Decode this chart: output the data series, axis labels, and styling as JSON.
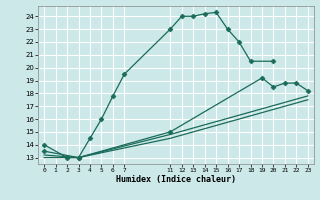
{
  "xlabel": "Humidex (Indice chaleur)",
  "bg_color": "#cce8e8",
  "grid_color": "#ffffff",
  "line_color": "#1a6b5a",
  "xlim": [
    -0.5,
    23.5
  ],
  "ylim": [
    12.5,
    24.8
  ],
  "xticks": [
    0,
    1,
    2,
    3,
    4,
    5,
    6,
    7,
    11,
    12,
    13,
    14,
    15,
    16,
    17,
    18,
    19,
    20,
    21,
    22,
    23
  ],
  "yticks": [
    13,
    14,
    15,
    16,
    17,
    18,
    19,
    20,
    21,
    22,
    23,
    24
  ],
  "series1_x": [
    0,
    2,
    3,
    4,
    5,
    6,
    7,
    11,
    12,
    13,
    14,
    15,
    16,
    17,
    18,
    20
  ],
  "series1_y": [
    14,
    13,
    13,
    14.5,
    16,
    17.8,
    19.5,
    23,
    24,
    24,
    24.2,
    24.3,
    23,
    22,
    20.5,
    20.5
  ],
  "series2_x": [
    0,
    3,
    11,
    19,
    20,
    21,
    22,
    23
  ],
  "series2_y": [
    13.5,
    13,
    15,
    19.2,
    18.5,
    18.8,
    18.8,
    18.2
  ],
  "series3_x": [
    0,
    3,
    11,
    23
  ],
  "series3_y": [
    13.2,
    13,
    14.8,
    17.8
  ],
  "series4_x": [
    0,
    3,
    11,
    23
  ],
  "series4_y": [
    13.0,
    13,
    14.5,
    17.5
  ]
}
